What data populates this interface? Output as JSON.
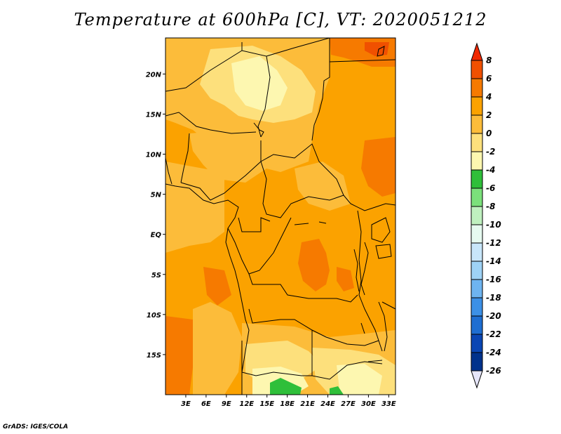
{
  "title": "Temperature at 600hPa [C], VT: 2020051212",
  "credit": "GrADS: IGES/COLA",
  "map": {
    "lon_range": [
      0,
      34
    ],
    "lat_range": [
      -20,
      24.5
    ],
    "lat_ticks": [
      {
        "value": 20,
        "label": "20N"
      },
      {
        "value": 15,
        "label": "15N"
      },
      {
        "value": 10,
        "label": "10N"
      },
      {
        "value": 5,
        "label": "5N"
      },
      {
        "value": 0,
        "label": "EQ"
      },
      {
        "value": -5,
        "label": "5S"
      },
      {
        "value": -10,
        "label": "10S"
      },
      {
        "value": -15,
        "label": "15S"
      }
    ],
    "lon_ticks": [
      {
        "value": 3,
        "label": "3E"
      },
      {
        "value": 6,
        "label": "6E"
      },
      {
        "value": 9,
        "label": "9E"
      },
      {
        "value": 12,
        "label": "12E"
      },
      {
        "value": 15,
        "label": "15E"
      },
      {
        "value": 18,
        "label": "18E"
      },
      {
        "value": 21,
        "label": "21E"
      },
      {
        "value": 24,
        "label": "24E"
      },
      {
        "value": 27,
        "label": "27E"
      },
      {
        "value": 30,
        "label": "30E"
      },
      {
        "value": 33,
        "label": "33E"
      }
    ]
  },
  "colorbar": {
    "labels": [
      "8",
      "6",
      "4",
      "2",
      "0",
      "-2",
      "-4",
      "-6",
      "-8",
      "-10",
      "-12",
      "-14",
      "-16",
      "-18",
      "-20",
      "-22",
      "-24",
      "-26"
    ],
    "colors": [
      "#f02800",
      "#f05000",
      "#f67a00",
      "#fba200",
      "#fcbc3a",
      "#fde07c",
      "#fdf7b0",
      "#2fbf3a",
      "#7be07b",
      "#bff0bf",
      "#e6faf0",
      "#c8e6fa",
      "#9ed2f5",
      "#6eb4f0",
      "#3c90e6",
      "#1e6ed2",
      "#0a46b4",
      "#00328c",
      "#0a0a64",
      "#e6e6fa"
    ]
  }
}
